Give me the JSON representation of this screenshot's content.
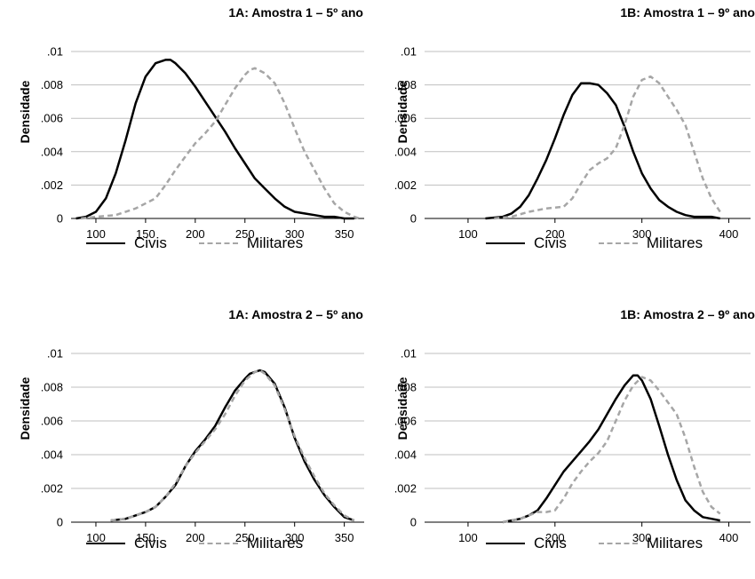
{
  "legend": {
    "civis": "Civis",
    "militares": "Militares"
  },
  "colors": {
    "civis": "#000000",
    "militares": "#a6a6a6",
    "grid": "#bfbfbf"
  },
  "chart_data": [
    {
      "type": "line",
      "title": "1A: Amostra 1 – 5º ano",
      "ylabel": "Densidade",
      "xlabel": "",
      "xlim": [
        75,
        370
      ],
      "ylim": [
        0,
        0.01
      ],
      "xticks": [
        100,
        150,
        200,
        250,
        300,
        350
      ],
      "yticks": [
        0,
        0.002,
        0.004,
        0.006,
        0.008,
        0.01
      ],
      "ytick_labels": [
        "0",
        ".002",
        ".004",
        ".006",
        ".008",
        ".01"
      ],
      "grid": true,
      "legend_position": "bottom",
      "series": [
        {
          "name": "Civis",
          "style": "solid",
          "x": [
            80,
            90,
            100,
            110,
            120,
            130,
            140,
            150,
            160,
            170,
            175,
            180,
            190,
            200,
            210,
            220,
            230,
            240,
            250,
            260,
            270,
            280,
            290,
            300,
            310,
            320,
            330,
            340,
            350,
            360
          ],
          "y": [
            0.0,
            0.0001,
            0.0004,
            0.0012,
            0.0027,
            0.0047,
            0.0069,
            0.0085,
            0.0093,
            0.0095,
            0.0095,
            0.0093,
            0.0087,
            0.0079,
            0.007,
            0.0061,
            0.0052,
            0.0042,
            0.0033,
            0.0024,
            0.0018,
            0.0012,
            0.0007,
            0.0004,
            0.0003,
            0.0002,
            0.0001,
            0.0001,
            0.0,
            0.0
          ]
        },
        {
          "name": "Militares",
          "style": "dashed",
          "x": [
            85,
            100,
            120,
            140,
            160,
            170,
            180,
            190,
            200,
            210,
            220,
            230,
            240,
            250,
            255,
            260,
            270,
            280,
            290,
            300,
            310,
            320,
            330,
            340,
            350,
            360,
            365
          ],
          "y": [
            0.0,
            0.0001,
            0.0002,
            0.0006,
            0.0012,
            0.002,
            0.0029,
            0.0037,
            0.0045,
            0.0051,
            0.0058,
            0.0068,
            0.0078,
            0.0086,
            0.0089,
            0.009,
            0.0087,
            0.0081,
            0.0069,
            0.0054,
            0.004,
            0.0029,
            0.0018,
            0.0009,
            0.0004,
            0.0001,
            0.0
          ]
        }
      ]
    },
    {
      "type": "line",
      "title": "1B: Amostra 1 – 9º ano",
      "ylabel": "Densidade",
      "xlabel": "",
      "xlim": [
        50,
        425
      ],
      "ylim": [
        0,
        0.01
      ],
      "xticks": [
        100,
        200,
        300,
        400
      ],
      "yticks": [
        0,
        0.002,
        0.004,
        0.006,
        0.008,
        0.01
      ],
      "ytick_labels": [
        "0",
        ".002",
        ".004",
        ".006",
        ".008",
        ".01"
      ],
      "grid": true,
      "legend_position": "bottom",
      "series": [
        {
          "name": "Civis",
          "style": "solid",
          "x": [
            120,
            140,
            150,
            160,
            170,
            180,
            190,
            200,
            210,
            220,
            230,
            240,
            250,
            260,
            270,
            280,
            290,
            300,
            310,
            320,
            330,
            340,
            350,
            360,
            370,
            380,
            390
          ],
          "y": [
            0.0,
            0.0001,
            0.0003,
            0.0007,
            0.0014,
            0.0024,
            0.0035,
            0.0048,
            0.0062,
            0.0074,
            0.0081,
            0.0081,
            0.008,
            0.0075,
            0.0068,
            0.0055,
            0.004,
            0.0027,
            0.0018,
            0.0011,
            0.0007,
            0.0004,
            0.0002,
            0.0001,
            0.0001,
            0.0001,
            0.0
          ]
        },
        {
          "name": "Militares",
          "style": "dashed",
          "x": [
            130,
            150,
            170,
            190,
            210,
            220,
            230,
            240,
            250,
            260,
            270,
            280,
            290,
            300,
            310,
            320,
            330,
            340,
            350,
            360,
            370,
            380,
            390
          ],
          "y": [
            0.0,
            0.0001,
            0.0004,
            0.0006,
            0.0007,
            0.0012,
            0.0021,
            0.0029,
            0.0033,
            0.0036,
            0.0042,
            0.0056,
            0.0073,
            0.0083,
            0.0085,
            0.0081,
            0.0073,
            0.0065,
            0.0056,
            0.004,
            0.0024,
            0.0012,
            0.0004
          ]
        }
      ]
    },
    {
      "type": "line",
      "title": "1A: Amostra 2 – 5º ano",
      "ylabel": "Densidade",
      "xlabel": "",
      "xlim": [
        75,
        370
      ],
      "ylim": [
        0,
        0.01
      ],
      "xticks": [
        100,
        150,
        200,
        250,
        300,
        350
      ],
      "yticks": [
        0,
        0.002,
        0.004,
        0.006,
        0.008,
        0.01
      ],
      "ytick_labels": [
        "0",
        ".002",
        ".004",
        ".006",
        ".008",
        ".01"
      ],
      "grid": true,
      "legend_position": "bottom",
      "series": [
        {
          "name": "Civis",
          "style": "solid",
          "x": [
            115,
            130,
            140,
            150,
            160,
            170,
            180,
            190,
            200,
            210,
            220,
            230,
            240,
            250,
            255,
            260,
            265,
            270,
            280,
            290,
            300,
            310,
            320,
            330,
            340,
            350,
            360
          ],
          "y": [
            0.0001,
            0.0002,
            0.0004,
            0.0006,
            0.0009,
            0.0015,
            0.0022,
            0.0033,
            0.0042,
            0.0049,
            0.0057,
            0.0068,
            0.0078,
            0.0085,
            0.0088,
            0.0089,
            0.009,
            0.0089,
            0.0082,
            0.0068,
            0.005,
            0.0036,
            0.0025,
            0.0016,
            0.0009,
            0.0003,
            0.0001
          ]
        },
        {
          "name": "Militares",
          "style": "dashed",
          "x": [
            115,
            130,
            140,
            150,
            160,
            170,
            180,
            190,
            200,
            210,
            220,
            230,
            240,
            250,
            260,
            265,
            270,
            280,
            290,
            300,
            310,
            320,
            330,
            340,
            350,
            360
          ],
          "y": [
            0.0001,
            0.0002,
            0.0004,
            0.0006,
            0.0009,
            0.0015,
            0.0023,
            0.0033,
            0.0041,
            0.0048,
            0.0055,
            0.0064,
            0.0075,
            0.0084,
            0.0089,
            0.009,
            0.0088,
            0.0081,
            0.0067,
            0.0051,
            0.0038,
            0.0027,
            0.0017,
            0.001,
            0.0004,
            0.0001
          ]
        }
      ]
    },
    {
      "type": "line",
      "title": "1B: Amostra 2 – 9º ano",
      "ylabel": "Densidade",
      "xlabel": "",
      "xlim": [
        50,
        425
      ],
      "ylim": [
        0,
        0.01
      ],
      "xticks": [
        100,
        200,
        300,
        400
      ],
      "yticks": [
        0,
        0.002,
        0.004,
        0.006,
        0.008,
        0.01
      ],
      "ytick_labels": [
        "0",
        ".002",
        ".004",
        ".006",
        ".008",
        ".01"
      ],
      "grid": true,
      "legend_position": "bottom",
      "series": [
        {
          "name": "Civis",
          "style": "solid",
          "x": [
            140,
            150,
            160,
            170,
            180,
            190,
            200,
            210,
            220,
            230,
            240,
            250,
            260,
            270,
            280,
            290,
            295,
            300,
            310,
            320,
            330,
            340,
            350,
            360,
            370,
            380,
            390
          ],
          "y": [
            0.0,
            0.0001,
            0.0002,
            0.0004,
            0.0007,
            0.0014,
            0.0022,
            0.003,
            0.0036,
            0.0042,
            0.0048,
            0.0055,
            0.0064,
            0.0073,
            0.0081,
            0.0087,
            0.0087,
            0.0084,
            0.0073,
            0.0057,
            0.004,
            0.0025,
            0.0013,
            0.0007,
            0.0003,
            0.0002,
            0.0001
          ]
        },
        {
          "name": "Militares",
          "style": "dashed",
          "x": [
            140,
            160,
            170,
            180,
            190,
            200,
            210,
            220,
            230,
            240,
            250,
            260,
            270,
            280,
            290,
            300,
            310,
            320,
            330,
            340,
            350,
            360,
            370,
            380,
            390
          ],
          "y": [
            0.0,
            0.0002,
            0.0004,
            0.0006,
            0.0006,
            0.0007,
            0.0014,
            0.0023,
            0.003,
            0.0036,
            0.0041,
            0.0048,
            0.006,
            0.0072,
            0.0081,
            0.0086,
            0.0084,
            0.0078,
            0.0071,
            0.0064,
            0.005,
            0.0033,
            0.0018,
            0.0009,
            0.0005
          ]
        }
      ]
    }
  ]
}
